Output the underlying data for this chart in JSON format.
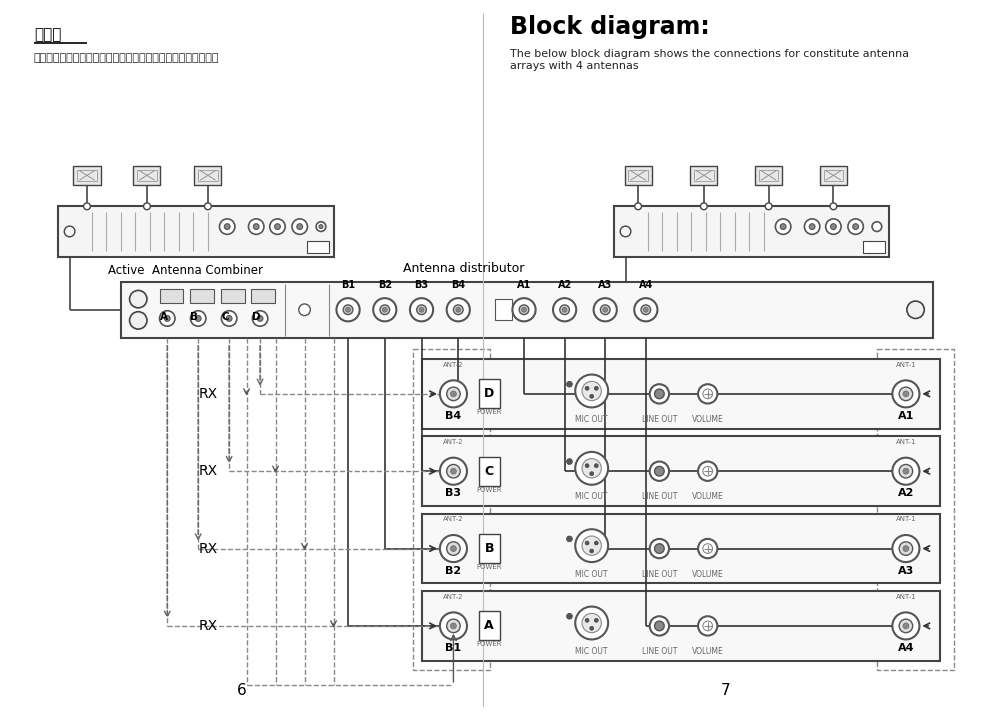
{
  "bg_color": "#ffffff",
  "left_title": "接线图",
  "left_subtitle": "下面的接线图显示连接四块天线，从而组成天线阵列的设备图：",
  "right_title": "Block diagram:",
  "right_subtitle": "The below block diagram shows the connections for constitute antenna\narrays with 4 antennas",
  "left_label": "Active  Antenna Combiner",
  "right_label": "Antenna distributor",
  "rx_labels": [
    "RX",
    "RX",
    "RX",
    "RX"
  ],
  "page_left": "6",
  "page_right": "7",
  "recv_labels_L": [
    "B4",
    "B3",
    "B2",
    "B1"
  ],
  "recv_labels_R": [
    "A1",
    "A2",
    "A3",
    "A4"
  ],
  "recv_chan": [
    "D",
    "C",
    "B",
    "A"
  ],
  "dist_ports_top": [
    "B1",
    "B2",
    "B3",
    "B4",
    "A1",
    "A2",
    "A3",
    "A4"
  ],
  "dist_abcd": [
    "A",
    "B",
    "C",
    "D"
  ]
}
